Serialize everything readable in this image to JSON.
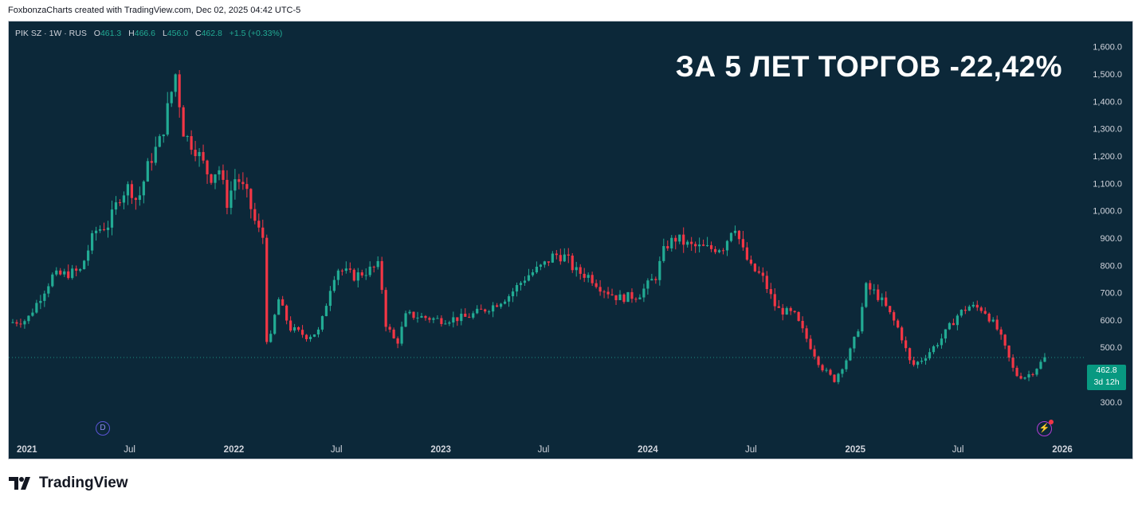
{
  "header": {
    "attribution": "FoxbonzaCharts created with TradingView.com, Dec 02, 2025 04:42 UTC-5"
  },
  "symbol": {
    "label": "PIK SZ · 1W · RUS",
    "open_key": "O",
    "open": "461.3",
    "high_key": "H",
    "high": "466.6",
    "low_key": "L",
    "low": "456.0",
    "close_key": "C",
    "close": "462.8",
    "change": "+1.5 (+0.33%)"
  },
  "headline": "ЗА 5 ЛЕТ ТОРГОВ -22,42%",
  "price_tag": {
    "price": "462.8",
    "countdown": "3d 12h"
  },
  "events": {
    "dividend_label": "D"
  },
  "footer": {
    "brand": "TradingView"
  },
  "colors": {
    "up": "#22ab94",
    "down": "#f23645",
    "background": "#0c2839",
    "text": "#d1d4dc"
  },
  "chart_data": {
    "type": "candlestick",
    "interval": "1W",
    "ylim": [
      250,
      1640
    ],
    "y_ticks": [
      "1,600.0",
      "1,500.0",
      "1,400.0",
      "1,300.0",
      "1,200.0",
      "1,100.0",
      "1,000.0",
      "900.0",
      "800.0",
      "700.0",
      "600.0",
      "500.0",
      "400.0",
      "300.0"
    ],
    "y_tick_values": [
      1600,
      1500,
      1400,
      1300,
      1200,
      1100,
      1000,
      900,
      800,
      700,
      600,
      500,
      400,
      300
    ],
    "x_ticks": [
      {
        "label": "2021",
        "date": "2021-01-01",
        "bold": true
      },
      {
        "label": "Jul",
        "date": "2021-07-01",
        "bold": false
      },
      {
        "label": "2022",
        "date": "2022-01-01",
        "bold": true
      },
      {
        "label": "Jul",
        "date": "2022-07-01",
        "bold": false
      },
      {
        "label": "2023",
        "date": "2023-01-01",
        "bold": true
      },
      {
        "label": "Jul",
        "date": "2023-07-01",
        "bold": false
      },
      {
        "label": "2024",
        "date": "2024-01-01",
        "bold": true
      },
      {
        "label": "Jul",
        "date": "2024-07-01",
        "bold": false
      },
      {
        "label": "2025",
        "date": "2025-01-01",
        "bold": true
      },
      {
        "label": "Jul",
        "date": "2025-07-01",
        "bold": false
      },
      {
        "label": "2026",
        "date": "2026-01-01",
        "bold": true
      }
    ],
    "last_price": 462.8,
    "close_path": [
      {
        "date": "2020-11-30",
        "close": 590
      },
      {
        "date": "2021-01-01",
        "close": 600
      },
      {
        "date": "2021-02-15",
        "close": 760
      },
      {
        "date": "2021-03-15",
        "close": 770
      },
      {
        "date": "2021-04-05",
        "close": 780
      },
      {
        "date": "2021-05-01",
        "close": 925
      },
      {
        "date": "2021-05-25",
        "close": 950
      },
      {
        "date": "2021-06-15",
        "close": 1060
      },
      {
        "date": "2021-07-01",
        "close": 1090
      },
      {
        "date": "2021-07-15",
        "close": 1030
      },
      {
        "date": "2021-08-05",
        "close": 1180
      },
      {
        "date": "2021-08-25",
        "close": 1260
      },
      {
        "date": "2021-09-20",
        "close": 1500
      },
      {
        "date": "2021-10-05",
        "close": 1280
      },
      {
        "date": "2021-10-25",
        "close": 1230
      },
      {
        "date": "2021-11-20",
        "close": 1120
      },
      {
        "date": "2021-12-05",
        "close": 1160
      },
      {
        "date": "2021-12-20",
        "close": 1030
      },
      {
        "date": "2022-01-05",
        "close": 1130
      },
      {
        "date": "2022-01-25",
        "close": 1050
      },
      {
        "date": "2022-02-10",
        "close": 940
      },
      {
        "date": "2022-02-22",
        "close": 900
      },
      {
        "date": "2022-03-01",
        "close": 470
      },
      {
        "date": "2022-03-20",
        "close": 680
      },
      {
        "date": "2022-04-10",
        "close": 570
      },
      {
        "date": "2022-05-10",
        "close": 540
      },
      {
        "date": "2022-06-01",
        "close": 560
      },
      {
        "date": "2022-06-20",
        "close": 720
      },
      {
        "date": "2022-07-01",
        "close": 790
      },
      {
        "date": "2022-08-01",
        "close": 760
      },
      {
        "date": "2022-08-25",
        "close": 780
      },
      {
        "date": "2022-09-15",
        "close": 800
      },
      {
        "date": "2022-09-25",
        "close": 590
      },
      {
        "date": "2022-10-15",
        "close": 510
      },
      {
        "date": "2022-11-01",
        "close": 620
      },
      {
        "date": "2022-12-01",
        "close": 610
      },
      {
        "date": "2023-01-01",
        "close": 600
      },
      {
        "date": "2023-02-15",
        "close": 610
      },
      {
        "date": "2023-04-01",
        "close": 650
      },
      {
        "date": "2023-05-01",
        "close": 690
      },
      {
        "date": "2023-06-01",
        "close": 760
      },
      {
        "date": "2023-07-01",
        "close": 800
      },
      {
        "date": "2023-07-20",
        "close": 840
      },
      {
        "date": "2023-08-10",
        "close": 830
      },
      {
        "date": "2023-08-25",
        "close": 780
      },
      {
        "date": "2023-09-20",
        "close": 760
      },
      {
        "date": "2023-10-10",
        "close": 720
      },
      {
        "date": "2023-11-10",
        "close": 680
      },
      {
        "date": "2023-12-15",
        "close": 690
      },
      {
        "date": "2024-01-15",
        "close": 760
      },
      {
        "date": "2024-02-01",
        "close": 870
      },
      {
        "date": "2024-02-20",
        "close": 900
      },
      {
        "date": "2024-03-15",
        "close": 870
      },
      {
        "date": "2024-04-20",
        "close": 860
      },
      {
        "date": "2024-05-15",
        "close": 870
      },
      {
        "date": "2024-06-01",
        "close": 960
      },
      {
        "date": "2024-06-15",
        "close": 860
      },
      {
        "date": "2024-07-01",
        "close": 790
      },
      {
        "date": "2024-07-20",
        "close": 760
      },
      {
        "date": "2024-08-15",
        "close": 640
      },
      {
        "date": "2024-09-15",
        "close": 620
      },
      {
        "date": "2024-10-10",
        "close": 520
      },
      {
        "date": "2024-11-01",
        "close": 430
      },
      {
        "date": "2024-11-25",
        "close": 380
      },
      {
        "date": "2024-12-20",
        "close": 470
      },
      {
        "date": "2025-01-05",
        "close": 560
      },
      {
        "date": "2025-01-20",
        "close": 720
      },
      {
        "date": "2025-02-05",
        "close": 700
      },
      {
        "date": "2025-02-20",
        "close": 660
      },
      {
        "date": "2025-03-20",
        "close": 560
      },
      {
        "date": "2025-04-10",
        "close": 430
      },
      {
        "date": "2025-05-01",
        "close": 460
      },
      {
        "date": "2025-06-01",
        "close": 530
      },
      {
        "date": "2025-07-01",
        "close": 620
      },
      {
        "date": "2025-07-20",
        "close": 650
      },
      {
        "date": "2025-08-15",
        "close": 640
      },
      {
        "date": "2025-09-10",
        "close": 560
      },
      {
        "date": "2025-09-25",
        "close": 480
      },
      {
        "date": "2025-10-10",
        "close": 400
      },
      {
        "date": "2025-10-25",
        "close": 390
      },
      {
        "date": "2025-11-10",
        "close": 410
      },
      {
        "date": "2025-12-02",
        "close": 462.8
      }
    ]
  }
}
